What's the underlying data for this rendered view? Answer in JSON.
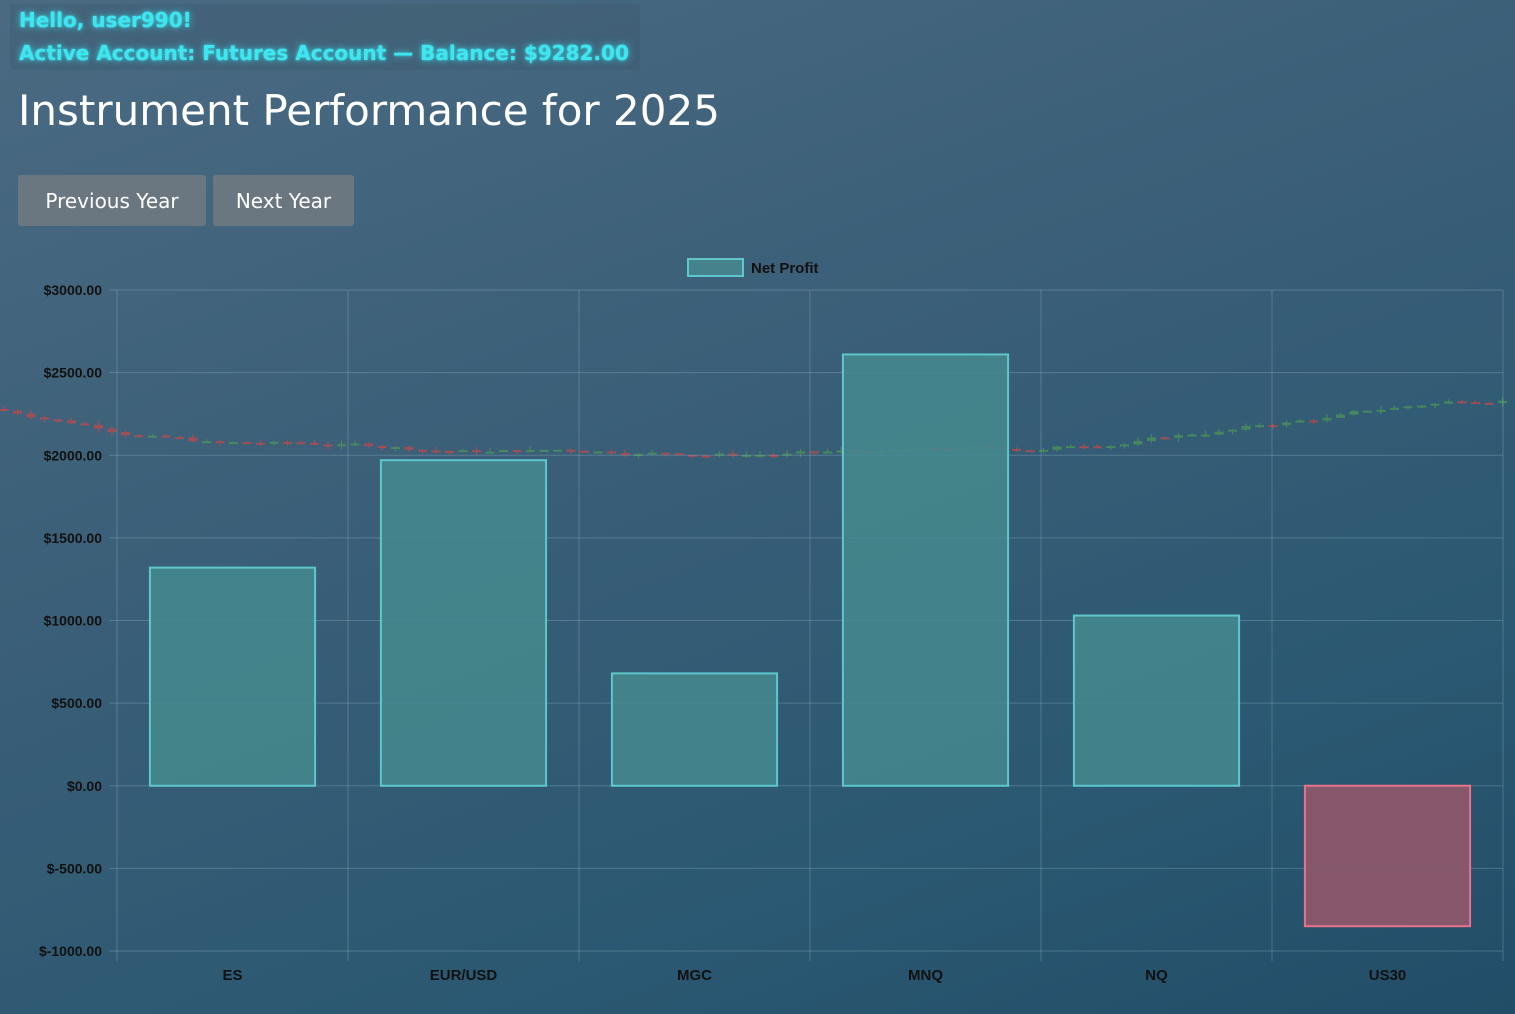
{
  "header": {
    "greeting": "Hello, user990!",
    "account_line": "Active Account: Futures Account — Balance: $9282.00"
  },
  "page": {
    "title": "Instrument Performance for 2025"
  },
  "nav": {
    "previous_label": "Previous Year",
    "next_label": "Next Year"
  },
  "colors": {
    "accent_glow": "#3fe6f0",
    "positive_fill": "#45898e",
    "positive_stroke": "#5ec7cc",
    "negative_fill": "#8c586c",
    "negative_stroke": "#e6738a",
    "candle_up": "#4d9a55",
    "candle_down": "#c84848"
  },
  "chart_data": {
    "type": "bar",
    "categories": [
      "ES",
      "EUR/USD",
      "MGC",
      "MNQ",
      "NQ",
      "US30"
    ],
    "series": [
      {
        "name": "Net Profit",
        "values": [
          1320,
          1970,
          680,
          2610,
          1030,
          -850
        ]
      }
    ],
    "ylim": [
      -1000,
      3000
    ],
    "y_ticks": [
      3000,
      2500,
      2000,
      1500,
      1000,
      500,
      0,
      -500,
      -1000
    ],
    "y_tick_labels": [
      "$3000.00",
      "$2500.00",
      "$2000.00",
      "$1500.00",
      "$1000.00",
      "$500.00",
      "$0.00",
      "$-500.00",
      "$-1000.00"
    ],
    "legend_position": "top-center",
    "grid": true
  }
}
